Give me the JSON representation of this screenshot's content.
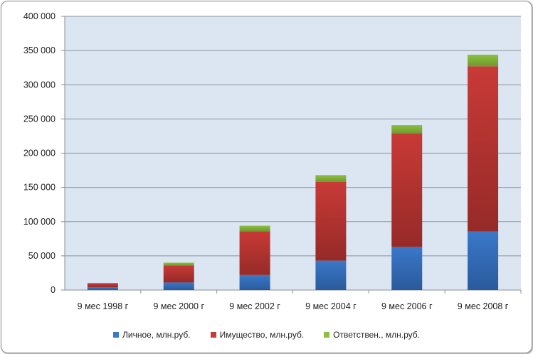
{
  "chart_data": {
    "type": "bar",
    "stacked": true,
    "title": "",
    "xlabel": "",
    "ylabel": "",
    "ylim": [
      0,
      400000
    ],
    "yticks": [
      0,
      50000,
      100000,
      150000,
      200000,
      250000,
      300000,
      350000,
      400000
    ],
    "ytick_labels": [
      "0",
      "50 000",
      "100 000",
      "150 000",
      "200 000",
      "250 000",
      "300 000",
      "350 000",
      "400 000"
    ],
    "grid": true,
    "legend_position": "bottom",
    "categories": [
      "9 мес 1998 г",
      "9 мес 2000 г",
      "9 мес 2002 г",
      "9 мес 2004 г",
      "9 мес 2006 г",
      "9 мес 2008 г"
    ],
    "series": [
      {
        "name": "Личное, млн.руб.",
        "color": "#3a78c8",
        "values": [
          4000,
          11000,
          22000,
          43000,
          63000,
          85500
        ]
      },
      {
        "name": "Имущество, млн.руб.",
        "color": "#c83a36",
        "values": [
          5800,
          25000,
          64000,
          115000,
          166000,
          241500
        ]
      },
      {
        "name": "Ответствен., млн.руб.",
        "color": "#8dc040",
        "values": [
          500,
          4000,
          8000,
          10000,
          12000,
          17000
        ]
      }
    ]
  }
}
